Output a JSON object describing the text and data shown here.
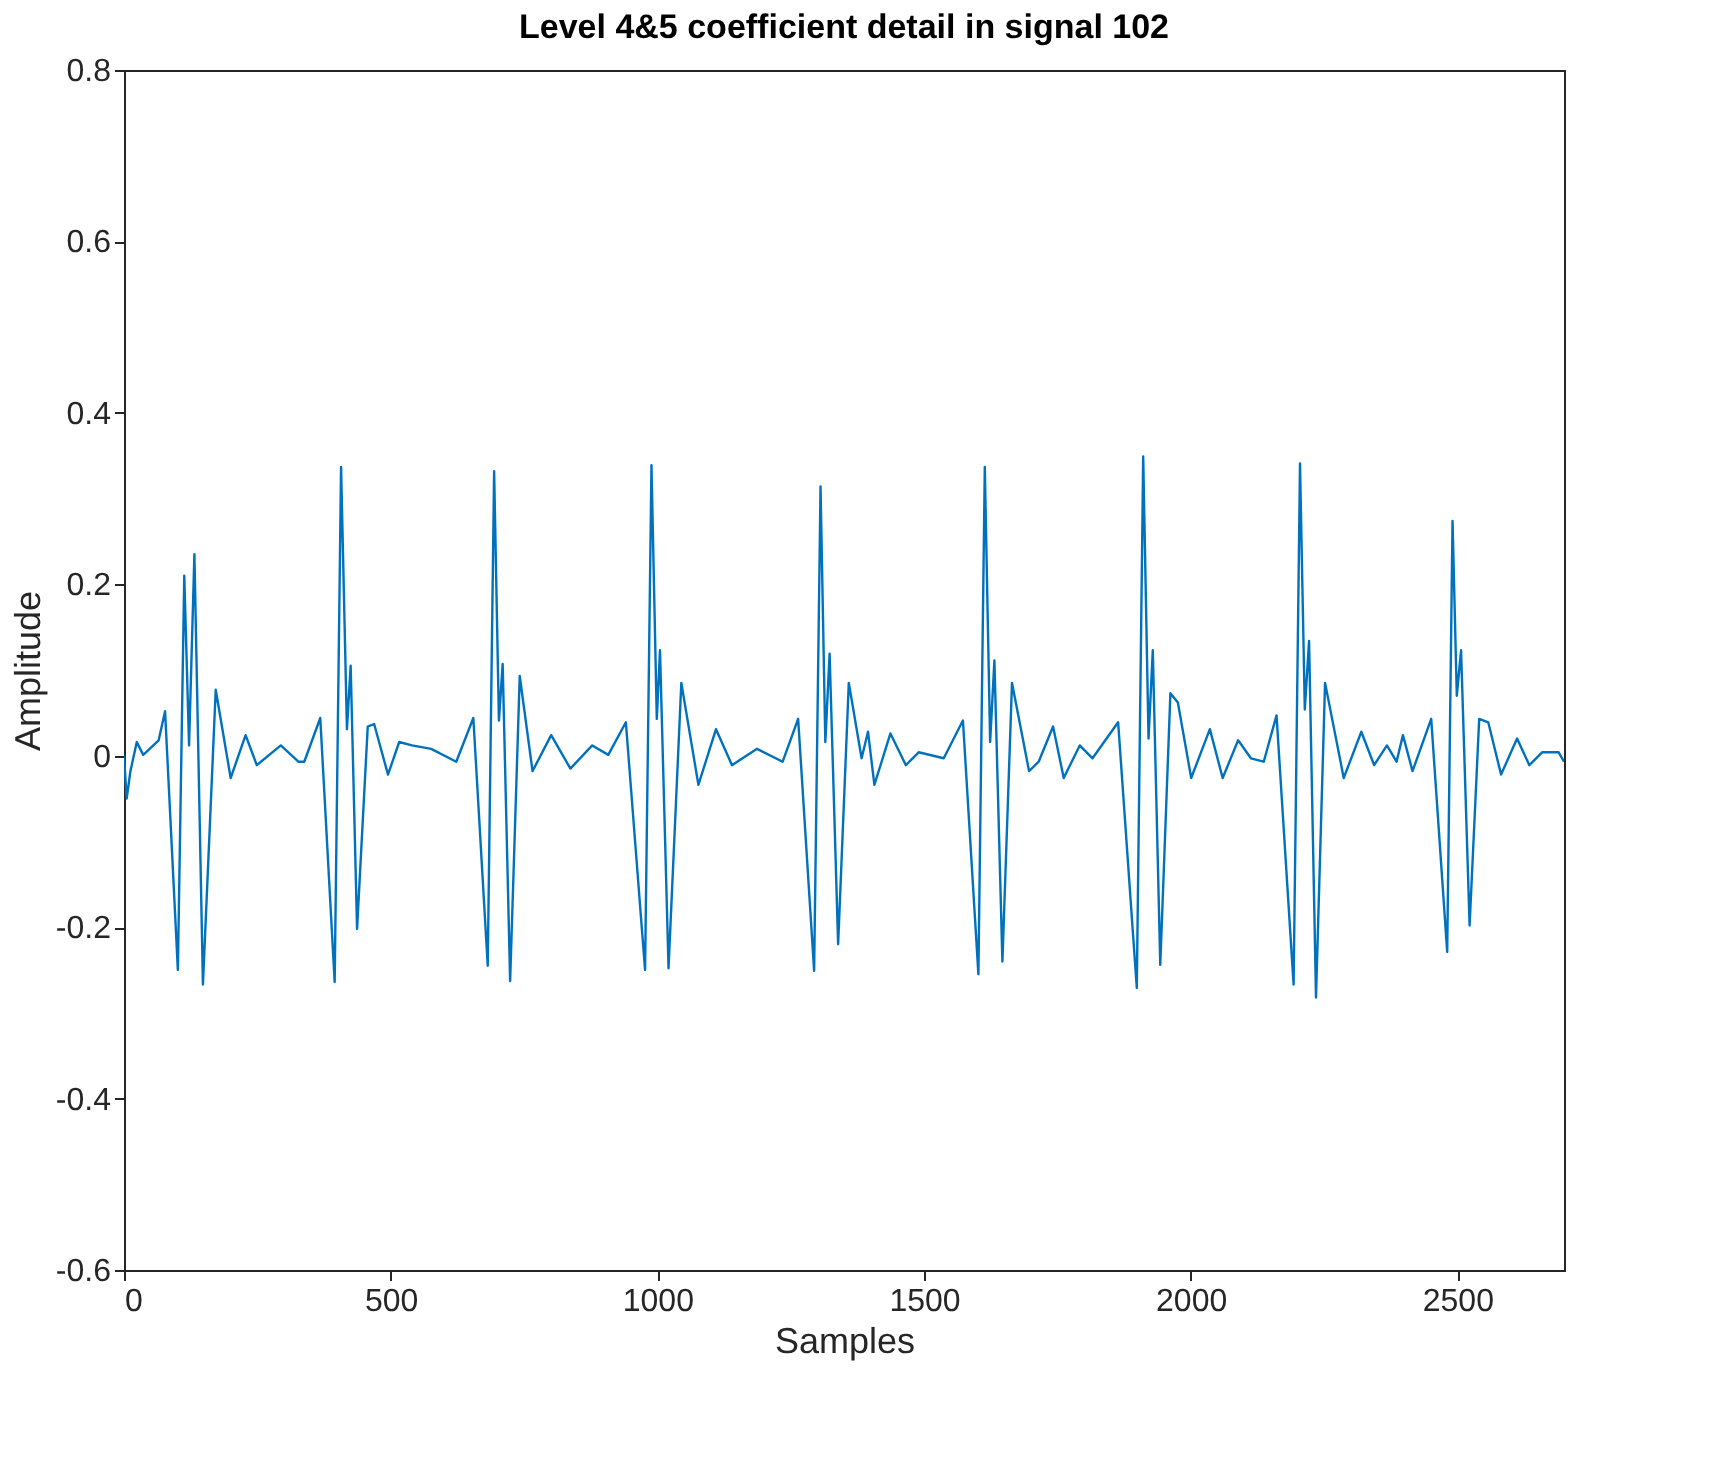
{
  "chart_data": {
    "type": "line",
    "title": "Level 4&5 coefficient detail in signal 102",
    "xlabel": "Samples",
    "ylabel": "Amplitude",
    "xlim": [
      0,
      2700
    ],
    "xticks": [
      0,
      500,
      1000,
      1500,
      2000,
      2500
    ],
    "ylim": [
      -0.6,
      0.8
    ],
    "yticks": [
      -0.6,
      -0.4,
      -0.2,
      0,
      0.2,
      0.4,
      0.6,
      0.8
    ],
    "grid": false,
    "marker": "none",
    "line_style": "solid",
    "series": [
      {
        "color": "#0072bd",
        "x": [
          0,
          5,
          12,
          24,
          36,
          65,
          77,
          101,
          113,
          122,
          132,
          148,
          172,
          200,
          228,
          249,
          294,
          327,
          338,
          368,
          395,
          407,
          418,
          425,
          437,
          457,
          469,
          495,
          516,
          540,
          576,
          623,
          655,
          682,
          694,
          703,
          710,
          724,
          742,
          766,
          801,
          837,
          878,
          908,
          941,
          977,
          989,
          999,
          1005,
          1021,
          1045,
          1077,
          1110,
          1140,
          1187,
          1235,
          1264,
          1294,
          1306,
          1315,
          1323,
          1339,
          1359,
          1383,
          1395,
          1407,
          1437,
          1466,
          1490,
          1537,
          1573,
          1602,
          1614,
          1624,
          1632,
          1647,
          1665,
          1697,
          1715,
          1742,
          1762,
          1792,
          1816,
          1864,
          1899,
          1911,
          1921,
          1929,
          1943,
          1962,
          1976,
          2001,
          2036,
          2060,
          2089,
          2113,
          2137,
          2161,
          2193,
          2205,
          2214,
          2222,
          2235,
          2252,
          2287,
          2320,
          2344,
          2368,
          2386,
          2398,
          2416,
          2451,
          2481,
          2491,
          2499,
          2507,
          2523,
          2541,
          2558,
          2582,
          2612,
          2635,
          2659,
          2690,
          2700
        ],
        "values": [
          0.0,
          -0.05,
          -0.018,
          0.016,
          0.001,
          0.018,
          0.052,
          -0.25,
          0.21,
          0.012,
          0.235,
          -0.267,
          0.077,
          -0.026,
          0.024,
          -0.011,
          0.012,
          -0.007,
          -0.007,
          0.044,
          -0.264,
          0.337,
          0.031,
          0.105,
          -0.202,
          0.034,
          0.037,
          -0.022,
          0.016,
          0.012,
          0.008,
          -0.007,
          0.044,
          -0.245,
          0.332,
          0.041,
          0.107,
          -0.263,
          0.093,
          -0.018,
          0.024,
          -0.015,
          0.012,
          0.001,
          0.039,
          -0.25,
          0.339,
          0.043,
          0.123,
          -0.248,
          0.085,
          -0.034,
          0.031,
          -0.011,
          0.008,
          -0.007,
          0.043,
          -0.251,
          0.314,
          0.016,
          0.119,
          -0.22,
          0.085,
          -0.003,
          0.028,
          -0.034,
          0.026,
          -0.011,
          0.004,
          -0.003,
          0.041,
          -0.255,
          0.337,
          0.016,
          0.111,
          -0.24,
          0.085,
          -0.018,
          -0.007,
          0.034,
          -0.026,
          0.012,
          -0.003,
          0.039,
          -0.271,
          0.349,
          0.02,
          0.123,
          -0.244,
          0.073,
          0.062,
          -0.026,
          0.031,
          -0.026,
          0.018,
          -0.003,
          -0.007,
          0.047,
          -0.267,
          0.341,
          0.054,
          0.134,
          -0.282,
          0.085,
          -0.026,
          0.028,
          -0.011,
          0.012,
          -0.007,
          0.024,
          -0.018,
          0.043,
          -0.229,
          0.274,
          0.07,
          0.123,
          -0.198,
          0.043,
          0.039,
          -0.022,
          0.02,
          -0.011,
          0.004,
          0.004,
          -0.007
        ]
      }
    ]
  }
}
